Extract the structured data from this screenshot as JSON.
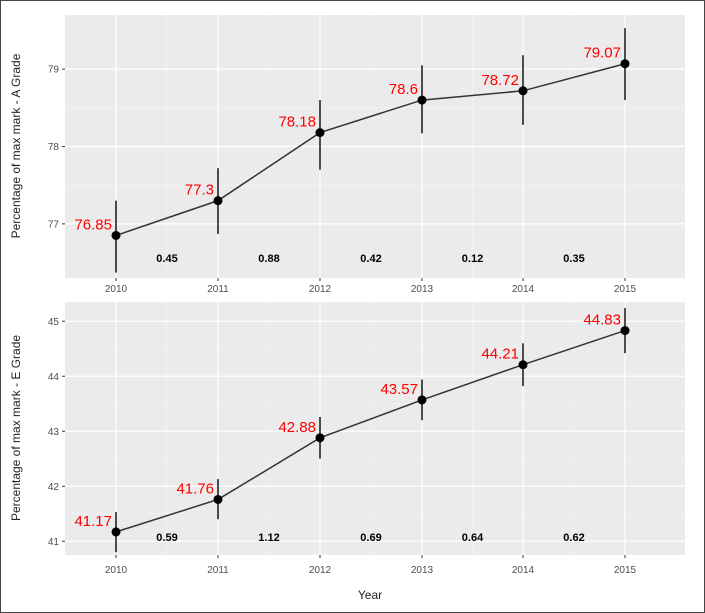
{
  "chart_data": [
    {
      "type": "line",
      "x": [
        "2010",
        "2011",
        "2012",
        "2013",
        "2014",
        "2015"
      ],
      "values": [
        76.85,
        77.3,
        78.18,
        78.6,
        78.72,
        79.07
      ],
      "value_labels": [
        "76.85",
        "77.3",
        "78.18",
        "78.6",
        "78.72",
        "79.07"
      ],
      "error_low": [
        76.37,
        76.87,
        77.7,
        78.17,
        78.28,
        78.6
      ],
      "error_high": [
        77.3,
        77.72,
        78.6,
        79.05,
        79.18,
        79.53
      ],
      "year_differences": [
        "0.45",
        "0.88",
        "0.42",
        "0.12",
        "0.35"
      ],
      "ylabel": "Percentage of max mark - A Grade",
      "y_ticks": [
        "77",
        "78",
        "79"
      ],
      "ylim": [
        76.3,
        79.7
      ],
      "grid": true,
      "colors": {
        "line": "#333333",
        "label": "#ff0000",
        "panel": "#ebebeb"
      }
    },
    {
      "type": "line",
      "x": [
        "2010",
        "2011",
        "2012",
        "2013",
        "2014",
        "2015"
      ],
      "values": [
        41.17,
        41.76,
        42.88,
        43.57,
        44.21,
        44.83
      ],
      "value_labels": [
        "41.17",
        "41.76",
        "42.88",
        "43.57",
        "44.21",
        "44.83"
      ],
      "error_low": [
        40.8,
        41.4,
        42.5,
        43.2,
        43.82,
        44.42
      ],
      "error_high": [
        41.53,
        42.13,
        43.26,
        43.94,
        44.6,
        45.24
      ],
      "year_differences": [
        "0.59",
        "1.12",
        "0.69",
        "0.64",
        "0.62"
      ],
      "ylabel": "Percentage of max mark - E Grade",
      "y_ticks": [
        "41",
        "42",
        "43",
        "44",
        "45"
      ],
      "ylim": [
        40.75,
        45.35
      ],
      "grid": true,
      "colors": {
        "line": "#333333",
        "label": "#ff0000",
        "panel": "#ebebeb"
      }
    }
  ],
  "xlabel": "Year"
}
